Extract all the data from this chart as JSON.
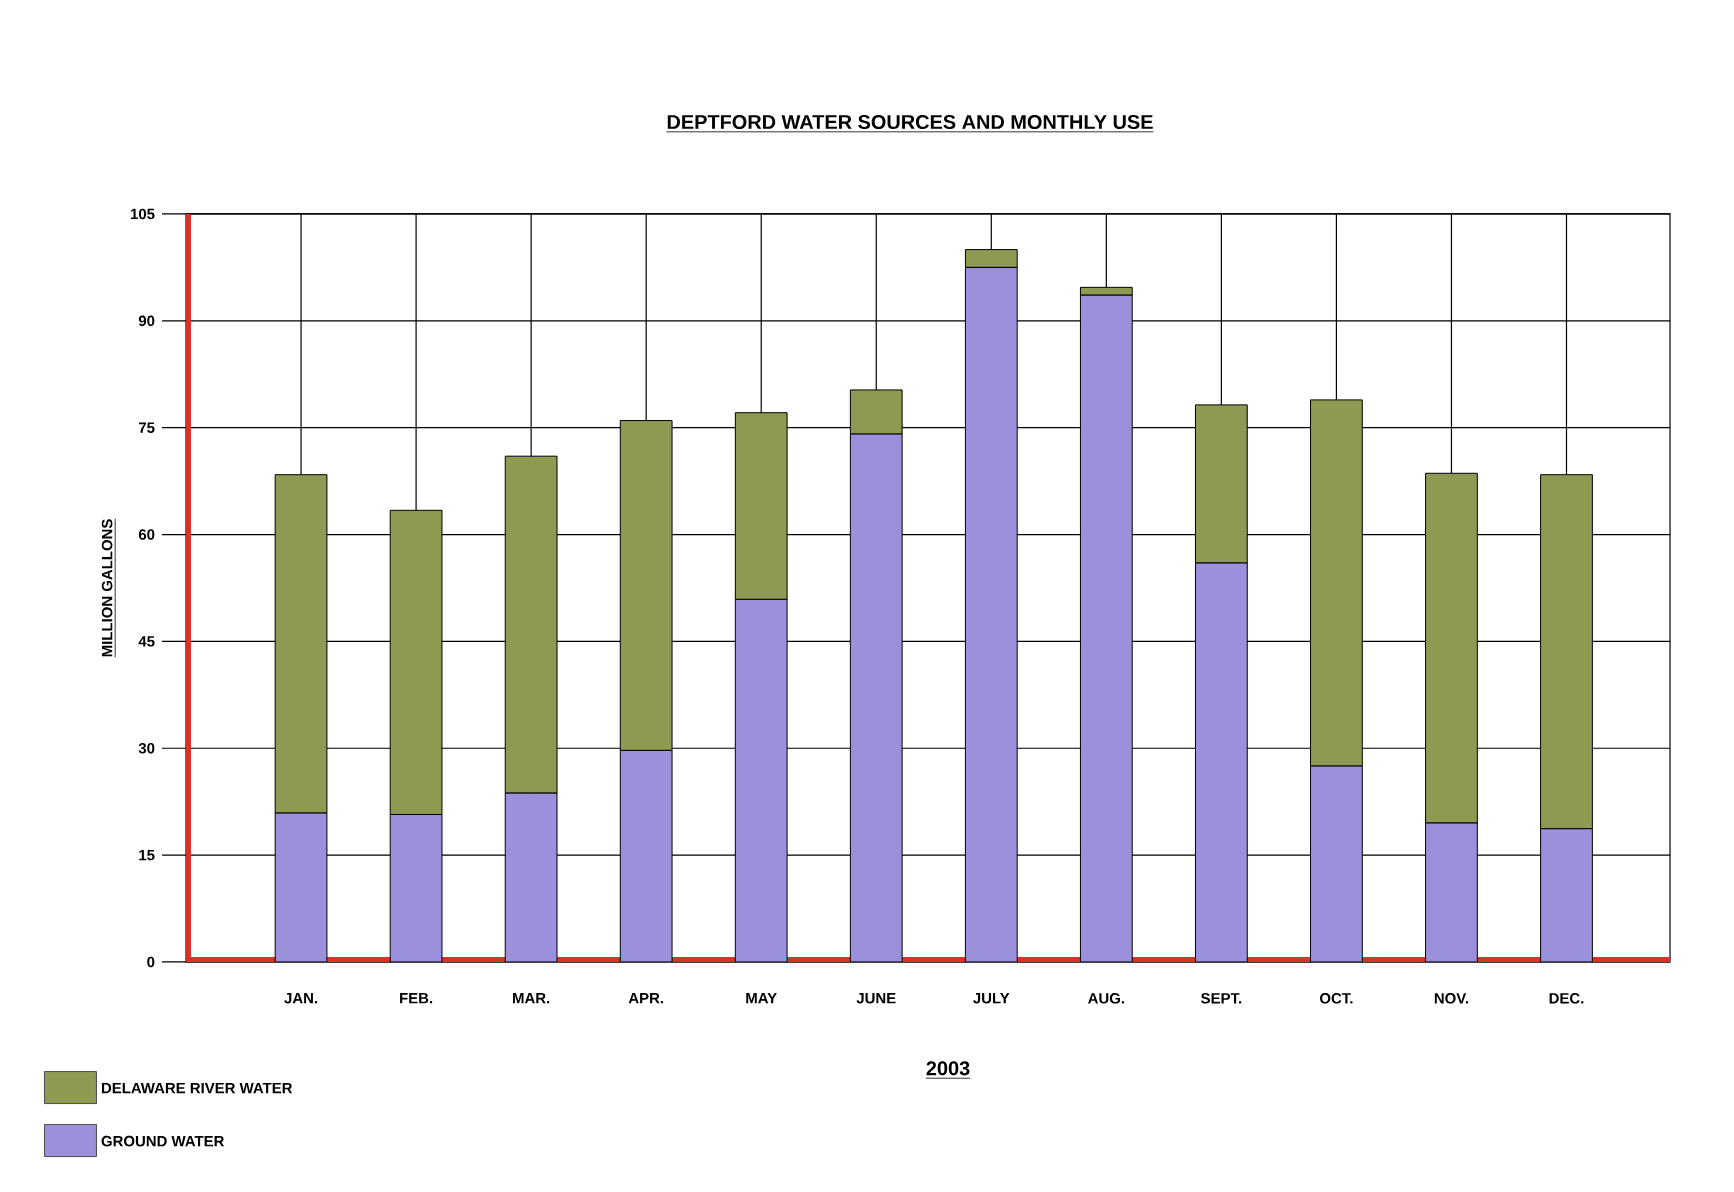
{
  "chart_data": {
    "type": "bar",
    "title": "DEPTFORD WATER SOURCES AND MONTHLY USE",
    "xlabel": "2003",
    "ylabel": "MILLION GALLONS",
    "categories": [
      "JAN.",
      "FEB.",
      "MAR.",
      "APR.",
      "MAY",
      "JUNE",
      "JULY",
      "AUG.",
      "SEPT.",
      "OCT.",
      "NOV.",
      "DEC."
    ],
    "series": [
      {
        "name": "GROUND WATER",
        "color": "#9b90dc",
        "values": [
          20.9,
          20.7,
          23.7,
          29.7,
          50.9,
          74.1,
          97.5,
          93.6,
          56.0,
          27.5,
          19.5,
          18.7
        ]
      },
      {
        "name": "DELAWARE RIVER WATER",
        "color": "#8e9a52",
        "values": [
          47.5,
          42.7,
          47.3,
          46.3,
          26.2,
          6.2,
          2.5,
          1.1,
          22.2,
          51.4,
          49.1,
          49.7
        ]
      }
    ],
    "stacked": true,
    "ylim": [
      0,
      105
    ],
    "yticks": [
      0,
      15,
      30,
      45,
      60,
      75,
      90,
      105
    ],
    "grid": true,
    "legend": "bottom left"
  }
}
